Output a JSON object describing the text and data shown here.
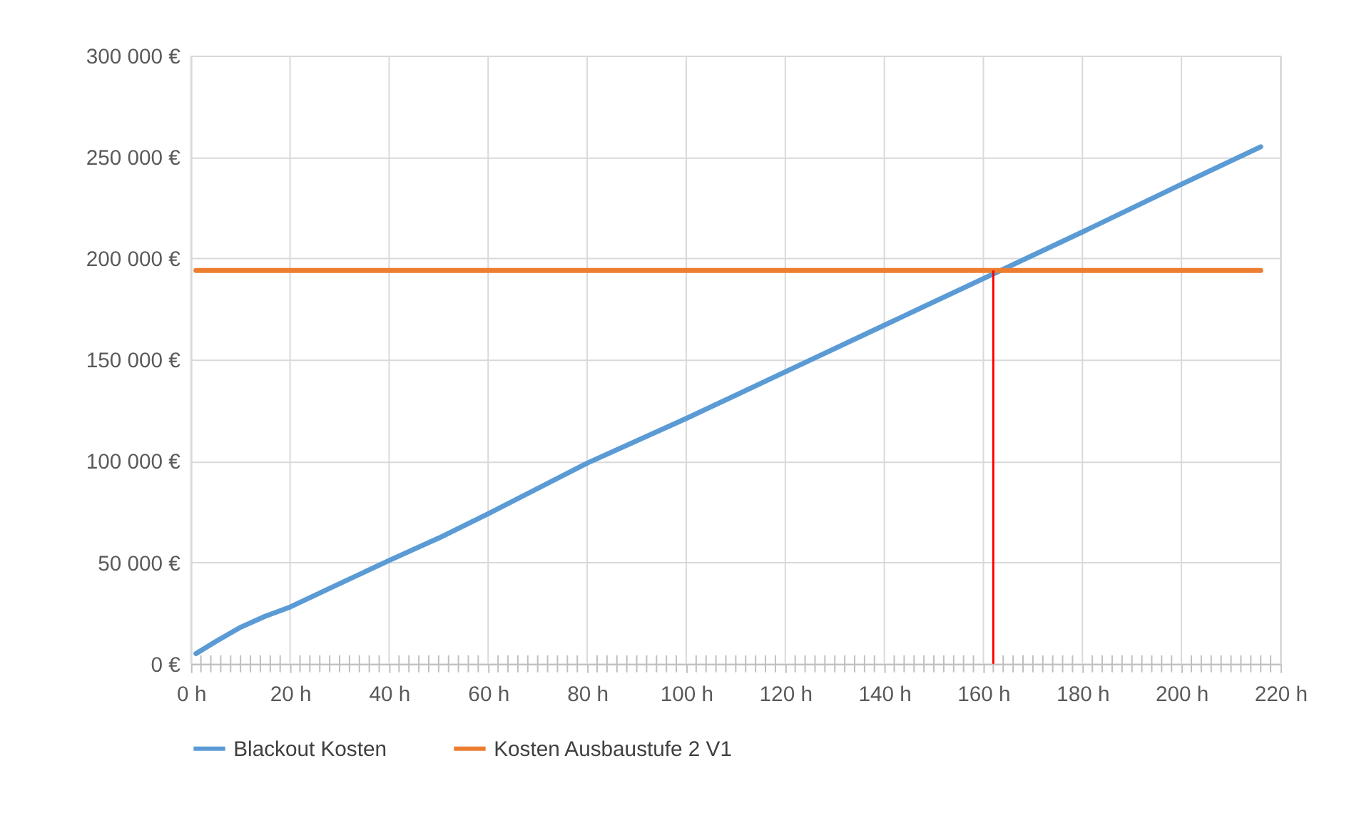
{
  "chart_data": {
    "type": "line",
    "x": [
      1,
      5,
      10,
      15,
      20,
      30,
      40,
      50,
      60,
      80,
      100,
      120,
      140,
      160,
      180,
      200,
      216
    ],
    "series": [
      {
        "name": "Blackout Kosten",
        "color": "#5b9bd5",
        "values": [
          5000,
          11000,
          18000,
          23500,
          28000,
          39500,
          51000,
          62000,
          74000,
          99000,
          121000,
          144000,
          167000,
          190000,
          213000,
          236500,
          255000
        ]
      },
      {
        "name": "Kosten Ausbaustufe 2 V1",
        "color": "#ed7d31",
        "x": [
          1,
          216
        ],
        "values": [
          194000,
          194000
        ]
      }
    ],
    "xlim": [
      0,
      220
    ],
    "xticks": [
      {
        "value": 0,
        "label": "0 h"
      },
      {
        "value": 2,
        "label": null
      },
      {
        "value": 4,
        "label": null
      },
      {
        "value": 6,
        "label": null
      },
      {
        "value": 8,
        "label": null
      },
      {
        "value": 10,
        "label": null
      },
      {
        "value": 12,
        "label": null
      },
      {
        "value": 14,
        "label": null
      },
      {
        "value": 16,
        "label": null
      },
      {
        "value": 18,
        "label": null
      },
      {
        "value": 20,
        "label": "20 h"
      },
      {
        "value": 22,
        "label": null
      },
      {
        "value": 24,
        "label": null
      },
      {
        "value": 26,
        "label": null
      },
      {
        "value": 28,
        "label": null
      },
      {
        "value": 30,
        "label": null
      },
      {
        "value": 32,
        "label": null
      },
      {
        "value": 34,
        "label": null
      },
      {
        "value": 36,
        "label": null
      },
      {
        "value": 38,
        "label": null
      },
      {
        "value": 40,
        "label": "40 h"
      },
      {
        "value": 42,
        "label": null
      },
      {
        "value": 44,
        "label": null
      },
      {
        "value": 46,
        "label": null
      },
      {
        "value": 48,
        "label": null
      },
      {
        "value": 50,
        "label": null
      },
      {
        "value": 52,
        "label": null
      },
      {
        "value": 54,
        "label": null
      },
      {
        "value": 56,
        "label": null
      },
      {
        "value": 58,
        "label": null
      },
      {
        "value": 60,
        "label": "60 h"
      },
      {
        "value": 62,
        "label": null
      },
      {
        "value": 64,
        "label": null
      },
      {
        "value": 66,
        "label": null
      },
      {
        "value": 68,
        "label": null
      },
      {
        "value": 70,
        "label": null
      },
      {
        "value": 72,
        "label": null
      },
      {
        "value": 74,
        "label": null
      },
      {
        "value": 76,
        "label": null
      },
      {
        "value": 78,
        "label": null
      },
      {
        "value": 80,
        "label": "80 h"
      },
      {
        "value": 82,
        "label": null
      },
      {
        "value": 84,
        "label": null
      },
      {
        "value": 86,
        "label": null
      },
      {
        "value": 88,
        "label": null
      },
      {
        "value": 90,
        "label": null
      },
      {
        "value": 92,
        "label": null
      },
      {
        "value": 94,
        "label": null
      },
      {
        "value": 96,
        "label": null
      },
      {
        "value": 98,
        "label": null
      },
      {
        "value": 100,
        "label": "100 h"
      },
      {
        "value": 102,
        "label": null
      },
      {
        "value": 104,
        "label": null
      },
      {
        "value": 106,
        "label": null
      },
      {
        "value": 108,
        "label": null
      },
      {
        "value": 110,
        "label": null
      },
      {
        "value": 112,
        "label": null
      },
      {
        "value": 114,
        "label": null
      },
      {
        "value": 116,
        "label": null
      },
      {
        "value": 118,
        "label": null
      },
      {
        "value": 120,
        "label": "120 h"
      },
      {
        "value": 122,
        "label": null
      },
      {
        "value": 124,
        "label": null
      },
      {
        "value": 126,
        "label": null
      },
      {
        "value": 128,
        "label": null
      },
      {
        "value": 130,
        "label": null
      },
      {
        "value": 132,
        "label": null
      },
      {
        "value": 134,
        "label": null
      },
      {
        "value": 136,
        "label": null
      },
      {
        "value": 138,
        "label": null
      },
      {
        "value": 140,
        "label": "140 h"
      },
      {
        "value": 142,
        "label": null
      },
      {
        "value": 144,
        "label": null
      },
      {
        "value": 146,
        "label": null
      },
      {
        "value": 148,
        "label": null
      },
      {
        "value": 150,
        "label": null
      },
      {
        "value": 152,
        "label": null
      },
      {
        "value": 154,
        "label": null
      },
      {
        "value": 156,
        "label": null
      },
      {
        "value": 158,
        "label": null
      },
      {
        "value": 160,
        "label": "160 h"
      },
      {
        "value": 162,
        "label": null
      },
      {
        "value": 164,
        "label": null
      },
      {
        "value": 166,
        "label": null
      },
      {
        "value": 168,
        "label": null
      },
      {
        "value": 170,
        "label": null
      },
      {
        "value": 172,
        "label": null
      },
      {
        "value": 174,
        "label": null
      },
      {
        "value": 176,
        "label": null
      },
      {
        "value": 178,
        "label": null
      },
      {
        "value": 180,
        "label": "180 h"
      },
      {
        "value": 182,
        "label": null
      },
      {
        "value": 184,
        "label": null
      },
      {
        "value": 186,
        "label": null
      },
      {
        "value": 188,
        "label": null
      },
      {
        "value": 190,
        "label": null
      },
      {
        "value": 192,
        "label": null
      },
      {
        "value": 194,
        "label": null
      },
      {
        "value": 196,
        "label": null
      },
      {
        "value": 198,
        "label": null
      },
      {
        "value": 200,
        "label": "200 h"
      },
      {
        "value": 202,
        "label": null
      },
      {
        "value": 204,
        "label": null
      },
      {
        "value": 206,
        "label": null
      },
      {
        "value": 208,
        "label": null
      },
      {
        "value": 210,
        "label": null
      },
      {
        "value": 212,
        "label": null
      },
      {
        "value": 214,
        "label": null
      },
      {
        "value": 216,
        "label": null
      },
      {
        "value": 218,
        "label": null
      },
      {
        "value": 220,
        "label": "220 h"
      }
    ],
    "ylim": [
      0,
      300000
    ],
    "yticks": [
      {
        "value": 0,
        "label": "0 €"
      },
      {
        "value": 50000,
        "label": "50 000 €"
      },
      {
        "value": 100000,
        "label": "100 000 €"
      },
      {
        "value": 150000,
        "label": "150 000 €"
      },
      {
        "value": 200000,
        "label": "200 000 €"
      },
      {
        "value": 250000,
        "label": "250 000 €"
      },
      {
        "value": 300000,
        "label": "300 000 €"
      }
    ],
    "ref_lines": [
      {
        "axis": "x",
        "value": 162,
        "color": "#ff0000",
        "line_style": "solid"
      }
    ],
    "grid": true,
    "legend": "bottom",
    "marker": "none",
    "line_style": "solid"
  }
}
